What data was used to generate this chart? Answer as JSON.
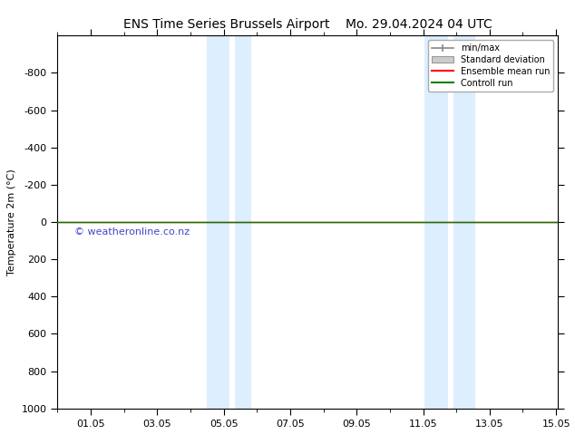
{
  "title_left": "ENS Time Series Brussels Airport",
  "title_right": "Mo. 29.04.2024 04 UTC",
  "ylabel": "Temperature 2m (°C)",
  "xlim": [
    0.0,
    15.05
  ],
  "ylim": [
    1000,
    -1000
  ],
  "yticks": [
    -800,
    -600,
    -400,
    -200,
    0,
    200,
    400,
    600,
    800,
    1000
  ],
  "ytick_labels": [
    "-800",
    "-600",
    "-400",
    "-200",
    "0",
    "200",
    "400",
    "600",
    "800",
    "1000"
  ],
  "xtick_labels": [
    "01.05",
    "03.05",
    "05.05",
    "07.05",
    "09.05",
    "11.05",
    "13.05",
    "15.05"
  ],
  "xtick_positions": [
    1.0,
    3.0,
    5.0,
    7.0,
    9.0,
    11.0,
    13.0,
    15.0
  ],
  "shaded_bands": [
    {
      "xmin": 4.5,
      "xmax": 5.17,
      "color": "#ddeeff"
    },
    {
      "xmin": 5.17,
      "xmax": 5.33,
      "color": "#ffffff"
    },
    {
      "xmin": 5.33,
      "xmax": 5.83,
      "color": "#ddeeff"
    },
    {
      "xmin": 11.05,
      "xmax": 11.75,
      "color": "#ddeeff"
    },
    {
      "xmin": 11.75,
      "xmax": 11.92,
      "color": "#ffffff"
    },
    {
      "xmin": 11.92,
      "xmax": 12.58,
      "color": "#ddeeff"
    }
  ],
  "green_line_y": 0,
  "green_line_color": "#008000",
  "red_line_color": "#ff0000",
  "watermark_text": "© weatheronline.co.nz",
  "watermark_color": "#4444cc",
  "bg_color": "#ffffff",
  "plot_bg_color": "#ffffff",
  "legend_items": [
    {
      "label": "min/max",
      "type": "minmax",
      "color": "#888888"
    },
    {
      "label": "Standard deviation",
      "type": "patch",
      "color": "#cccccc"
    },
    {
      "label": "Ensemble mean run",
      "type": "line",
      "color": "#ff0000",
      "linewidth": 1.5
    },
    {
      "label": "Controll run",
      "type": "line",
      "color": "#008000",
      "linewidth": 1.5
    }
  ],
  "title_fontsize": 10,
  "axis_label_fontsize": 8,
  "tick_fontsize": 8
}
